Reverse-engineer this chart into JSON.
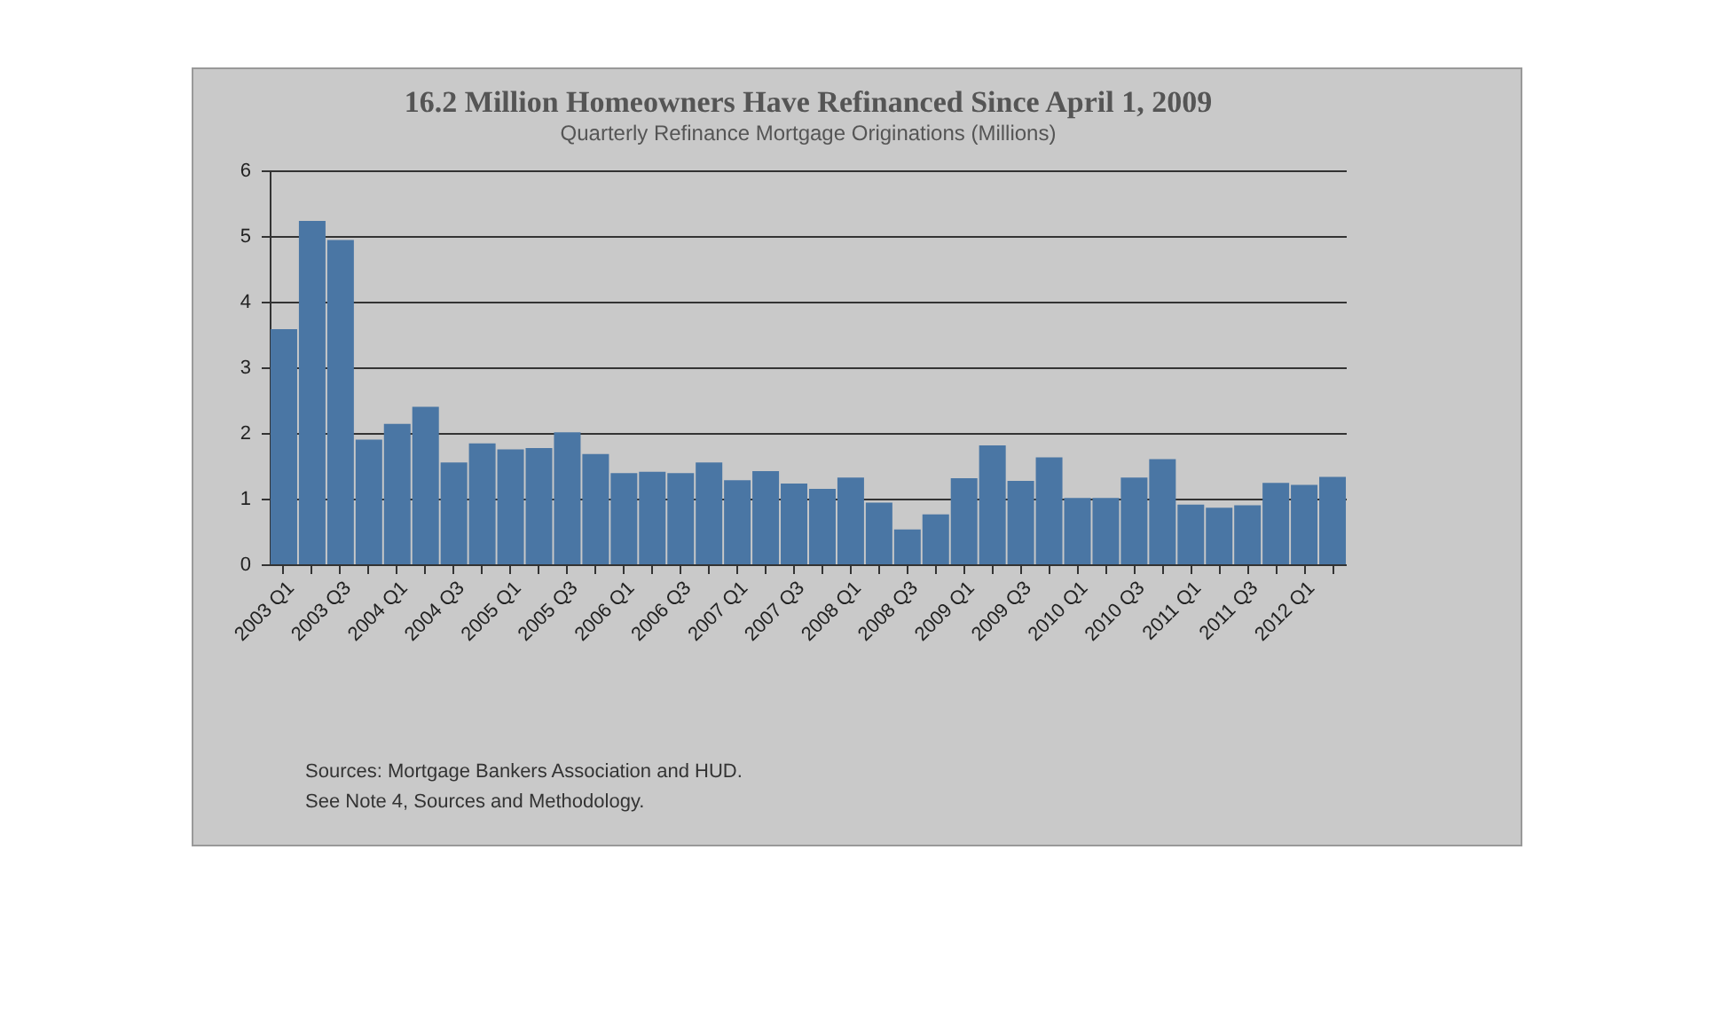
{
  "chart_data": {
    "type": "bar",
    "title": "16.2 Million Homeowners Have Refinanced Since April 1, 2009",
    "subtitle": "Quarterly Refinance Mortgage Originations (Millions)",
    "categories": [
      "2003 Q1",
      null,
      "2003 Q3",
      null,
      "2004 Q1",
      null,
      "2004 Q3",
      null,
      "2005 Q1",
      null,
      "2005 Q3",
      null,
      "2006 Q1",
      null,
      "2006 Q3",
      null,
      "2007 Q1",
      null,
      "2007 Q3",
      null,
      "2008 Q1",
      null,
      "2008 Q3",
      null,
      "2009 Q1",
      null,
      "2009 Q3",
      null,
      "2010 Q1",
      null,
      "2010 Q3",
      null,
      "2011 Q1",
      null,
      "2011 Q3",
      null,
      "2012 Q1",
      null
    ],
    "values": [
      3.58,
      5.23,
      4.94,
      1.9,
      2.14,
      2.4,
      1.55,
      1.84,
      1.75,
      1.77,
      2.01,
      1.68,
      1.39,
      1.41,
      1.39,
      1.55,
      1.28,
      1.42,
      1.23,
      1.15,
      1.32,
      0.94,
      0.53,
      0.76,
      1.31,
      1.81,
      1.27,
      1.63,
      1.01,
      1.01,
      1.32,
      1.6,
      0.91,
      0.86,
      0.9,
      1.24,
      1.21,
      1.33
    ],
    "color": "#4a76a4",
    "ylim": [
      0,
      6
    ],
    "yticks": [
      0,
      1,
      2,
      3,
      4,
      5,
      6
    ],
    "grid": "y",
    "annotations": [
      "Sources:  Mortgage Bankers Association and HUD.",
      "See Note 4, Sources and Methodology."
    ]
  }
}
